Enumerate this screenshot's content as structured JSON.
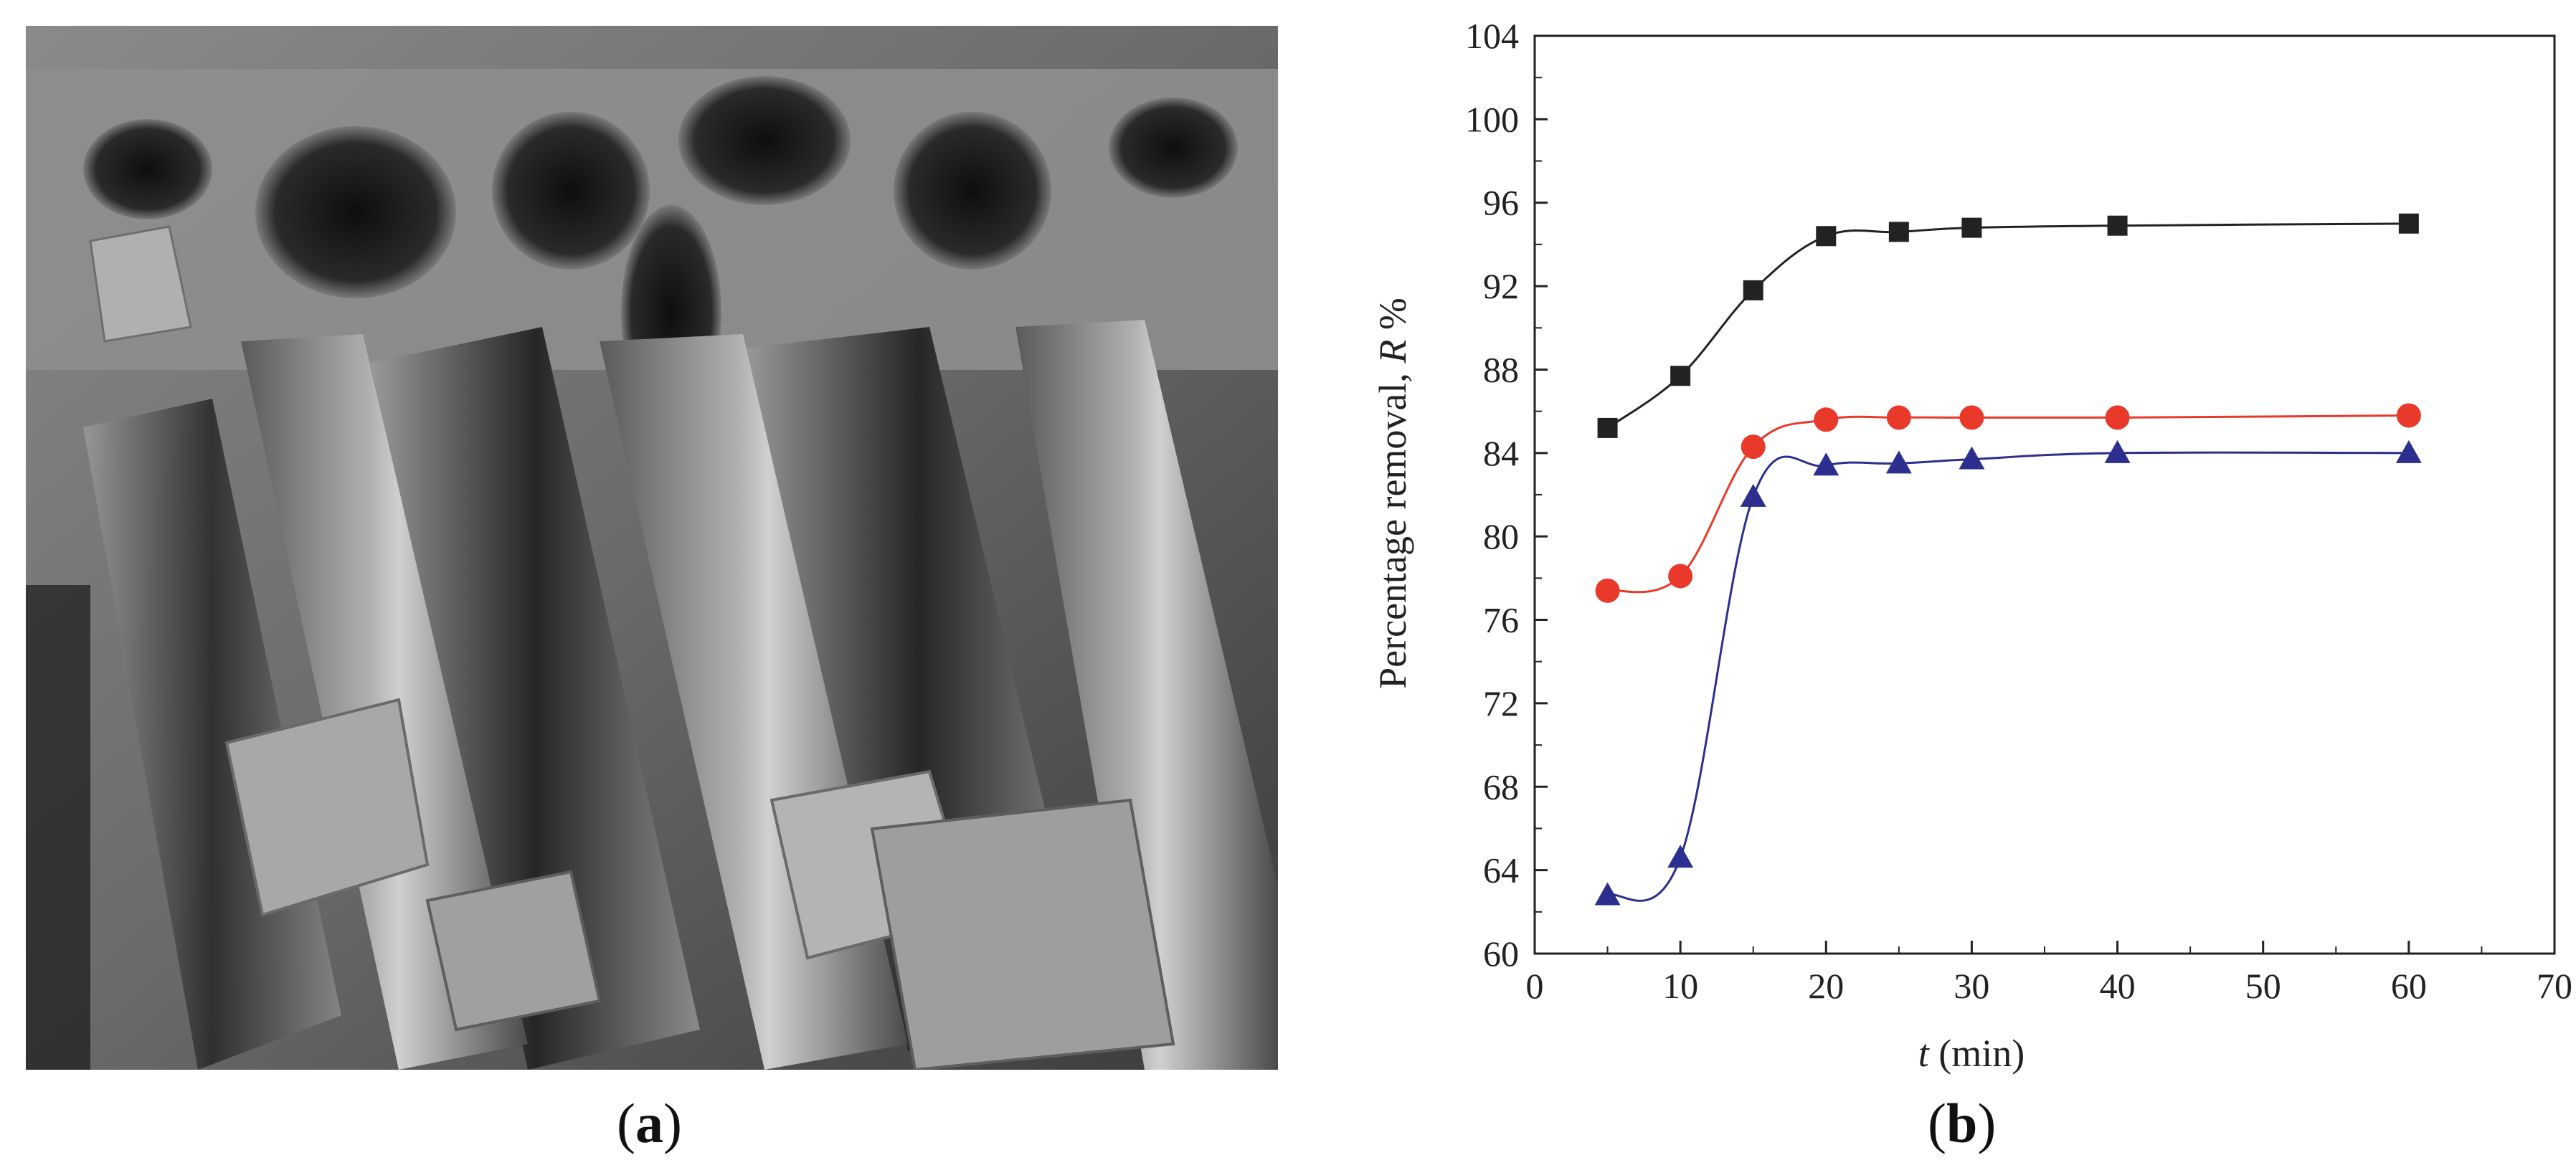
{
  "panels": {
    "a_open": "(",
    "a_letter": "a",
    "a_close": ")",
    "b_open": "(",
    "b_letter": "b",
    "b_close": ")"
  },
  "sem_image": {
    "palette": {
      "dark": "#1c1c1c",
      "mid": "#6e6e6e",
      "light": "#b8b8b8",
      "highlight": "#dcdcdc"
    }
  },
  "chart_data": {
    "type": "line",
    "xlabel_italic": "t",
    "xlabel_rest": " (min)",
    "ylabel_main": "Percentage removal, ",
    "ylabel_italic": "R",
    "ylabel_unit": " %",
    "xlim": [
      0,
      70
    ],
    "ylim": [
      60,
      104
    ],
    "xticks": [
      0,
      10,
      20,
      30,
      40,
      50,
      60,
      70
    ],
    "yticks": [
      60,
      64,
      68,
      72,
      76,
      80,
      84,
      88,
      92,
      96,
      100,
      104
    ],
    "grid": false,
    "legend": "none",
    "series": [
      {
        "marker": "square",
        "color": "#222222",
        "x": [
          5,
          10,
          15,
          20,
          25,
          30,
          40,
          60
        ],
        "values": [
          85.2,
          87.7,
          91.8,
          94.4,
          94.6,
          94.8,
          94.9,
          95.0
        ]
      },
      {
        "marker": "circle",
        "color": "#e8392a",
        "x": [
          5,
          10,
          15,
          20,
          25,
          30,
          40,
          60
        ],
        "values": [
          77.4,
          78.1,
          84.3,
          85.6,
          85.7,
          85.7,
          85.7,
          85.8
        ]
      },
      {
        "marker": "triangle",
        "color": "#2d2f8f",
        "x": [
          5,
          10,
          15,
          20,
          25,
          30,
          40,
          60
        ],
        "values": [
          62.8,
          64.6,
          81.9,
          83.4,
          83.5,
          83.7,
          84.0,
          84.0
        ]
      }
    ]
  }
}
